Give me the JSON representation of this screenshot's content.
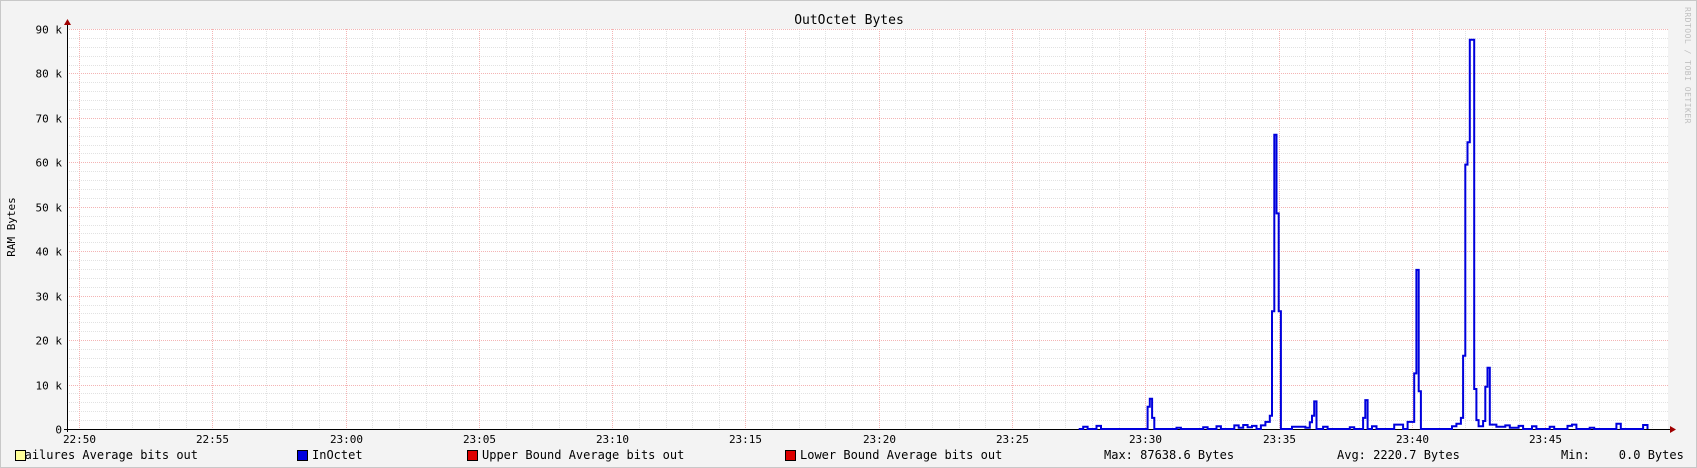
{
  "chart_data": {
    "type": "line",
    "title": "OutOctet Bytes",
    "ylabel": "RAM Bytes",
    "ylim": [
      0,
      90000
    ],
    "y_ticks": [
      {
        "value": 0,
        "label": "0"
      },
      {
        "value": 10000,
        "label": "10 k"
      },
      {
        "value": 20000,
        "label": "20 k"
      },
      {
        "value": 30000,
        "label": "30 k"
      },
      {
        "value": 40000,
        "label": "40 k"
      },
      {
        "value": 50000,
        "label": "50 k"
      },
      {
        "value": 60000,
        "label": "60 k"
      },
      {
        "value": 70000,
        "label": "70 k"
      },
      {
        "value": 80000,
        "label": "80 k"
      },
      {
        "value": 90000,
        "label": "90 k"
      }
    ],
    "x_ticks": [
      "22:50",
      "22:55",
      "23:00",
      "23:05",
      "23:10",
      "23:15",
      "23:20",
      "23:25",
      "23:30",
      "23:35",
      "23:40",
      "23:45"
    ],
    "grid": true,
    "legend_position": "bottom",
    "series": [
      {
        "name": "InOctet",
        "color": "#0000dd",
        "points": [
          [
            "23:27:30",
            0
          ],
          [
            "23:27:40",
            500
          ],
          [
            "23:27:50",
            0
          ],
          [
            "23:28:10",
            700
          ],
          [
            "23:28:20",
            0
          ],
          [
            "23:30:00",
            0
          ],
          [
            "23:30:05",
            5000
          ],
          [
            "23:30:10",
            6800
          ],
          [
            "23:30:15",
            2500
          ],
          [
            "23:30:20",
            0
          ],
          [
            "23:31:10",
            300
          ],
          [
            "23:31:20",
            0
          ],
          [
            "23:32:10",
            400
          ],
          [
            "23:32:20",
            0
          ],
          [
            "23:32:40",
            600
          ],
          [
            "23:32:50",
            0
          ],
          [
            "23:33:20",
            800
          ],
          [
            "23:33:30",
            300
          ],
          [
            "23:33:40",
            900
          ],
          [
            "23:33:50",
            400
          ],
          [
            "23:34:00",
            700
          ],
          [
            "23:34:10",
            0
          ],
          [
            "23:34:20",
            800
          ],
          [
            "23:34:30",
            1600
          ],
          [
            "23:34:40",
            3000
          ],
          [
            "23:34:45",
            26500
          ],
          [
            "23:34:50",
            66200
          ],
          [
            "23:34:55",
            48500
          ],
          [
            "23:35:00",
            26500
          ],
          [
            "23:35:05",
            0
          ],
          [
            "23:35:30",
            500
          ],
          [
            "23:36:00",
            300
          ],
          [
            "23:36:10",
            1500
          ],
          [
            "23:36:15",
            3000
          ],
          [
            "23:36:20",
            6200
          ],
          [
            "23:36:25",
            0
          ],
          [
            "23:36:40",
            500
          ],
          [
            "23:36:50",
            0
          ],
          [
            "23:37:40",
            400
          ],
          [
            "23:37:50",
            0
          ],
          [
            "23:38:10",
            2500
          ],
          [
            "23:38:15",
            6500
          ],
          [
            "23:38:20",
            0
          ],
          [
            "23:38:30",
            600
          ],
          [
            "23:38:40",
            0
          ],
          [
            "23:39:20",
            1000
          ],
          [
            "23:39:40",
            0
          ],
          [
            "23:39:50",
            1600
          ],
          [
            "23:40:05",
            12500
          ],
          [
            "23:40:10",
            35800
          ],
          [
            "23:40:15",
            8500
          ],
          [
            "23:40:20",
            0
          ],
          [
            "23:41:30",
            600
          ],
          [
            "23:41:40",
            1200
          ],
          [
            "23:41:50",
            2500
          ],
          [
            "23:41:55",
            16500
          ],
          [
            "23:42:00",
            59500
          ],
          [
            "23:42:05",
            64500
          ],
          [
            "23:42:10",
            87600
          ],
          [
            "23:42:20",
            9000
          ],
          [
            "23:42:25",
            2000
          ],
          [
            "23:42:30",
            600
          ],
          [
            "23:42:40",
            1800
          ],
          [
            "23:42:45",
            9500
          ],
          [
            "23:42:50",
            13800
          ],
          [
            "23:42:55",
            1000
          ],
          [
            "23:43:10",
            500
          ],
          [
            "23:43:30",
            800
          ],
          [
            "23:43:40",
            300
          ],
          [
            "23:44:00",
            700
          ],
          [
            "23:44:10",
            0
          ],
          [
            "23:44:30",
            600
          ],
          [
            "23:44:40",
            0
          ],
          [
            "23:45:10",
            500
          ],
          [
            "23:45:20",
            0
          ],
          [
            "23:45:50",
            700
          ],
          [
            "23:46:00",
            1000
          ],
          [
            "23:46:10",
            0
          ],
          [
            "23:46:40",
            300
          ],
          [
            "23:46:50",
            0
          ],
          [
            "23:47:40",
            1200
          ],
          [
            "23:47:50",
            0
          ],
          [
            "23:48:40",
            900
          ],
          [
            "23:48:50",
            0
          ]
        ]
      }
    ]
  },
  "legend": {
    "items": [
      {
        "label": "Failures Average bits out",
        "color": "#ffff99"
      },
      {
        "label": "InOctet",
        "color": "#0000dd"
      },
      {
        "label": "Upper Bound Average bits out",
        "color": "#dd0000"
      },
      {
        "label": "Lower Bound Average bits out",
        "color": "#dd0000"
      }
    ],
    "max": "Max: 87638.6 Bytes",
    "avg": "Avg: 2220.7 Bytes",
    "min": "Min:    0.0 Bytes"
  },
  "watermark": "RRDTOOL / TOBI OETIKER"
}
